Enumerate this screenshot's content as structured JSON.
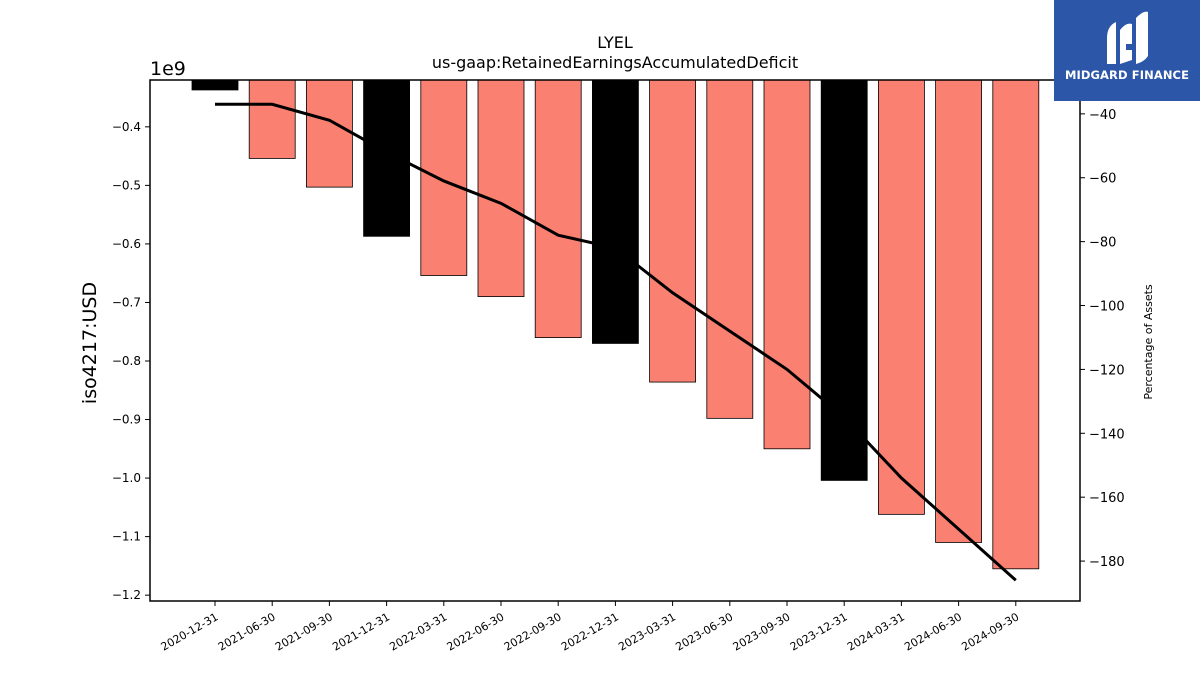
{
  "chart_data": {
    "type": "bar",
    "title": "LYEL",
    "subtitle": "us-gaap:RetainedEarningsAccumulatedDeficit",
    "ylabel": "iso4217:USD",
    "y_offset_label": "1e9",
    "y2label": "Percentage of Assets",
    "categories": [
      "2020-12-31",
      "2021-06-30",
      "2021-09-30",
      "2021-12-31",
      "2022-03-31",
      "2022-06-30",
      "2022-09-30",
      "2022-12-31",
      "2023-03-31",
      "2023-06-30",
      "2023-09-30",
      "2023-12-31",
      "2024-03-31",
      "2024-06-30",
      "2024-09-30"
    ],
    "series": [
      {
        "values": [
          -0.337,
          -0.454,
          -0.503,
          -0.587,
          -0.654,
          -0.69,
          -0.76,
          -0.77,
          -0.836,
          -0.898,
          -0.95,
          -1.004,
          -1.062,
          -1.11,
          -1.155
        ],
        "colors": [
          "#000000",
          "#fa8072",
          "#fa8072",
          "#000000",
          "#fa8072",
          "#fa8072",
          "#fa8072",
          "#000000",
          "#fa8072",
          "#fa8072",
          "#fa8072",
          "#000000",
          "#fa8072",
          "#fa8072",
          "#fa8072"
        ]
      },
      {
        "axis": "right",
        "values": [
          -37,
          -37,
          -42,
          -52,
          -61,
          -68,
          -78,
          -82,
          -96,
          -108,
          -120,
          -135,
          -154,
          -170,
          -186
        ]
      }
    ],
    "ylim": [
      -1.21,
      -0.32
    ],
    "y2lim": [
      -192.5,
      -29.4
    ],
    "yticks": [
      "−0.4",
      "−0.5",
      "−0.6",
      "−0.7",
      "−0.8",
      "−0.9",
      "−1.0",
      "−1.1",
      "−1.2"
    ],
    "y2ticks": [
      "−40",
      "−60",
      "−80",
      "−100",
      "−120",
      "−140",
      "−160",
      "−180"
    ],
    "grid": false
  },
  "logo": {
    "text": "MIDGARD FINANCE",
    "color": "#2c56a8"
  }
}
